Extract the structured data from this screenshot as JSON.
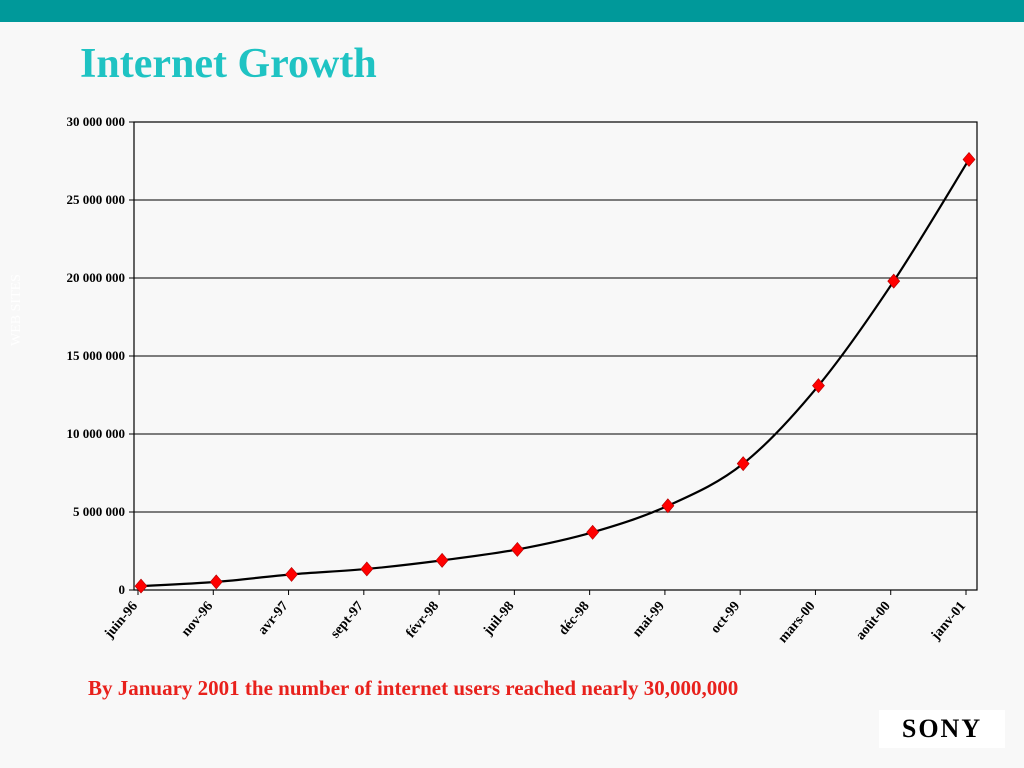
{
  "slide": {
    "title": "Internet Growth",
    "caption": "By January 2001 the number of internet users reached nearly 30,000,000",
    "logo": "SONY",
    "accent_color": "#00999a",
    "title_color": "#1fc3c3",
    "caption_color": "#e8211c",
    "marker_color": "#ff0000"
  },
  "chart_data": {
    "type": "line",
    "title": "",
    "xlabel": "",
    "ylabel": "WEB SITES",
    "ylim": [
      0,
      30000000
    ],
    "yticks": [
      0,
      5000000,
      10000000,
      15000000,
      20000000,
      25000000,
      30000000
    ],
    "ytick_labels": [
      "0",
      "5 000 000",
      "10 000 000",
      "15 000 000",
      "20 000 000",
      "25 000 000",
      "30 000 000"
    ],
    "xtick_labels": [
      "juin-96",
      "nov-96",
      "avr-97",
      "sept-97",
      "févr-98",
      "juil-98",
      "déc-98",
      "mai-99",
      "oct-99",
      "mars-00",
      "août-00",
      "janv-01"
    ],
    "grid": "horizontal",
    "legend": "none",
    "marker": "diamond",
    "series": [
      {
        "x": [
          "1996-06",
          "1996-11",
          "1997-04",
          "1997-09",
          "1998-02",
          "1998-07",
          "1998-12",
          "1999-05",
          "1999-10",
          "2000-03",
          "2000-08",
          "2001-01"
        ],
        "values": [
          250000,
          520000,
          1000000,
          1350000,
          1900000,
          2600000,
          3700000,
          5400000,
          8100000,
          13100000,
          19800000,
          27600000
        ]
      }
    ]
  }
}
